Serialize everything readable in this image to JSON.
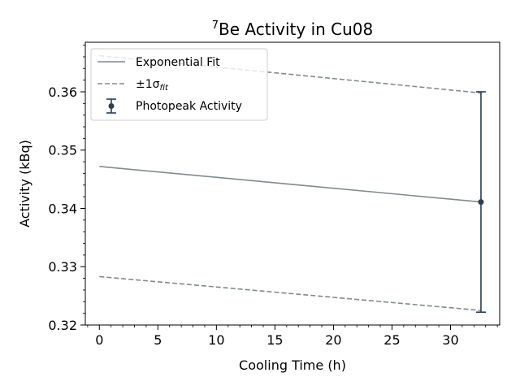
{
  "chart_data": {
    "type": "line",
    "title_sup": "7",
    "title_main": "Be Activity in Cu08",
    "xlabel": "Cooling Time (h)",
    "ylabel": "Activity (kBq)",
    "xlim": [
      -1.2,
      34.2
    ],
    "ylim": [
      0.32,
      0.3685
    ],
    "x_ticks": [
      0,
      5,
      10,
      15,
      20,
      25,
      30
    ],
    "y_ticks": [
      0.32,
      0.33,
      0.34,
      0.35,
      0.36
    ],
    "x_tick_labels": [
      "0",
      "5",
      "10",
      "15",
      "20",
      "25",
      "30"
    ],
    "y_tick_labels": [
      "0.32",
      "0.33",
      "0.34",
      "0.35",
      "0.36"
    ],
    "x_minor_step": 1,
    "y_minor_step": 0.002,
    "grid": false,
    "legend_position": "top-left",
    "series": [
      {
        "name": "Exponential Fit",
        "kind": "line",
        "style": "solid",
        "color": "#7f8c8d",
        "x": [
          0,
          32.6
        ],
        "y": [
          0.3472,
          0.3411
        ]
      },
      {
        "name": "±1σ",
        "name_sub": "fit",
        "kind": "band",
        "style": "dashed",
        "color": "#7f8c8d",
        "x": [
          0,
          32.6
        ],
        "upper": [
          0.3662,
          0.3598
        ],
        "lower": [
          0.3283,
          0.3225
        ]
      },
      {
        "name": "Photopeak Activity",
        "kind": "errorbar",
        "color": "#2c3e50",
        "x": [
          32.6
        ],
        "y": [
          0.3411
        ],
        "yerr": [
          0.0189
        ]
      }
    ]
  }
}
